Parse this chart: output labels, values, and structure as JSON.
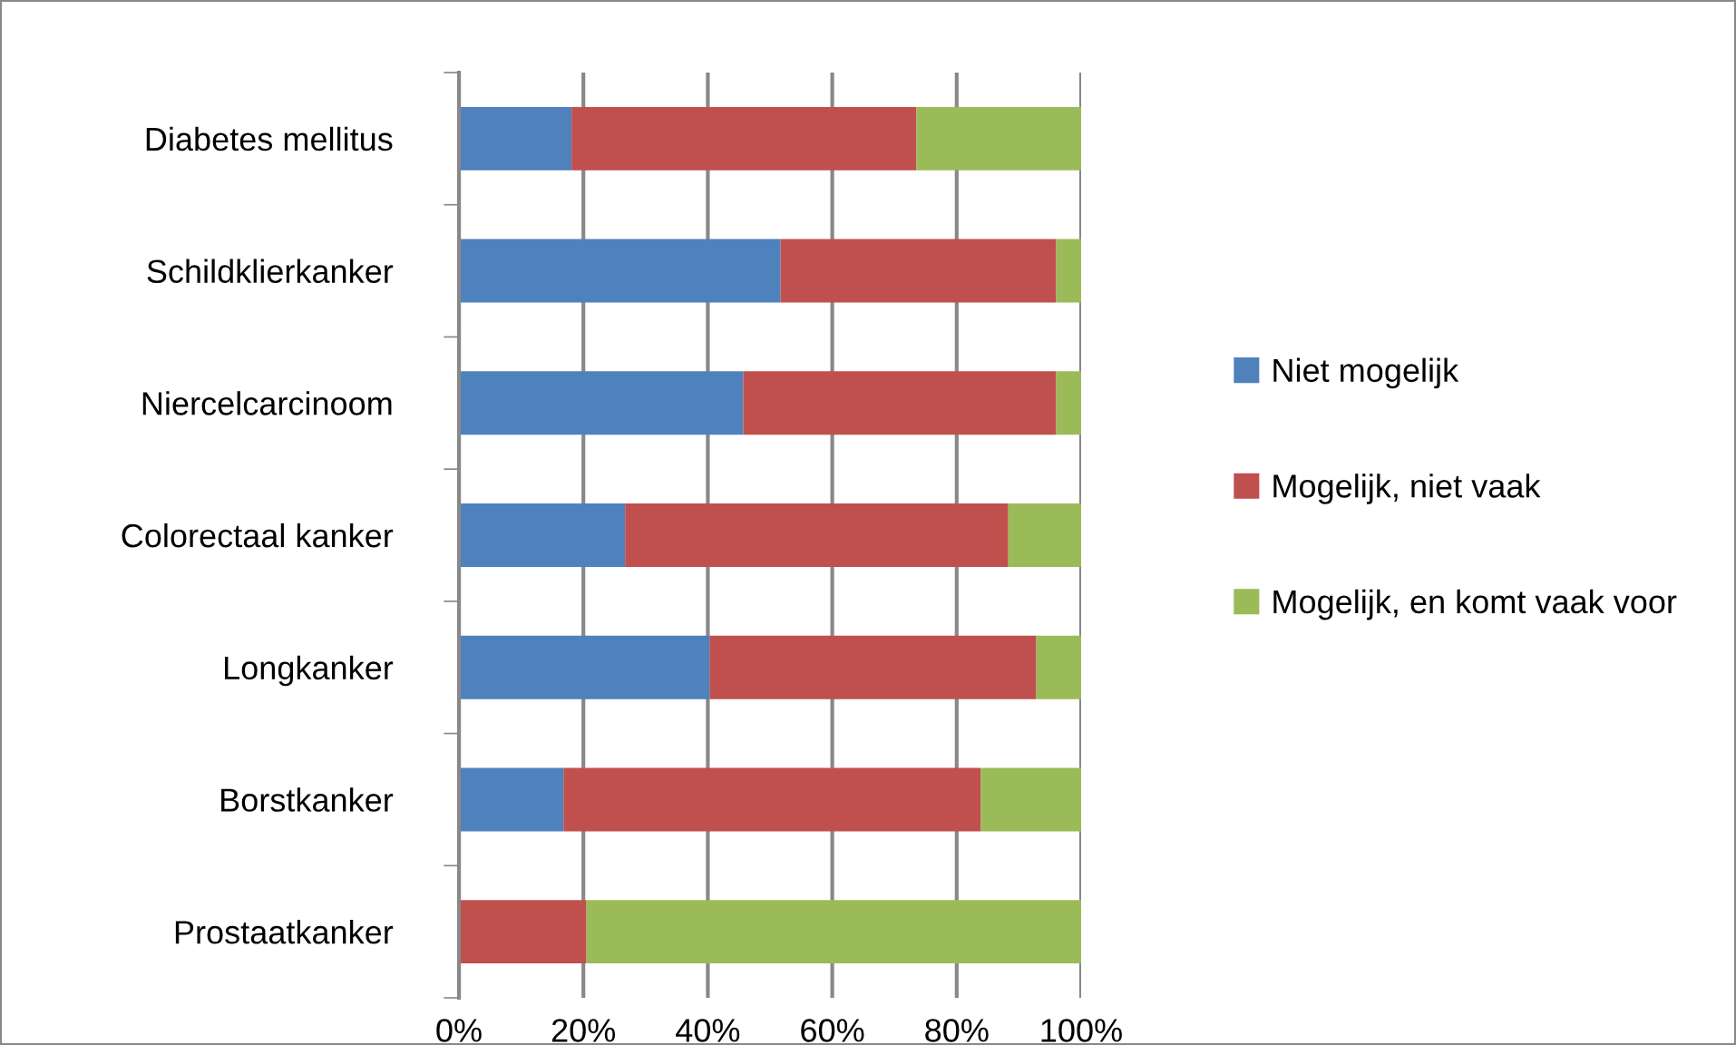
{
  "chart_data": {
    "type": "bar",
    "orientation": "horizontal",
    "stacked": true,
    "categories": [
      "Diabetes mellitus",
      "Schildklierkanker",
      "Niercelcarcinoom",
      "Colorectaal kanker",
      "Longkanker",
      "Borstkanker",
      "Prostaatkanker"
    ],
    "series": [
      {
        "name": "Niet mogelijk",
        "color": "#4f81bd",
        "values": [
          18.1,
          51.7,
          45.7,
          26.7,
          40.3,
          16.8,
          0
        ]
      },
      {
        "name": "Mogelijk, niet vaak",
        "color": "#c0504d",
        "values": [
          55.4,
          44.3,
          50.3,
          61.6,
          52.5,
          67.1,
          20.5
        ]
      },
      {
        "name": "Mogelijk, en komt vaak voor",
        "color": "#9bbb59",
        "values": [
          26.5,
          4.0,
          4.0,
          11.7,
          7.2,
          16.1,
          79.5
        ]
      }
    ],
    "xlim": [
      0,
      100
    ],
    "xticks": [
      {
        "value": 0,
        "label": "0%"
      },
      {
        "value": 20,
        "label": "20%"
      },
      {
        "value": 40,
        "label": "40%"
      },
      {
        "value": 60,
        "label": "60%"
      },
      {
        "value": 80,
        "label": "80%"
      },
      {
        "value": 100,
        "label": "100%"
      }
    ],
    "grid": "x",
    "legend": "right"
  }
}
